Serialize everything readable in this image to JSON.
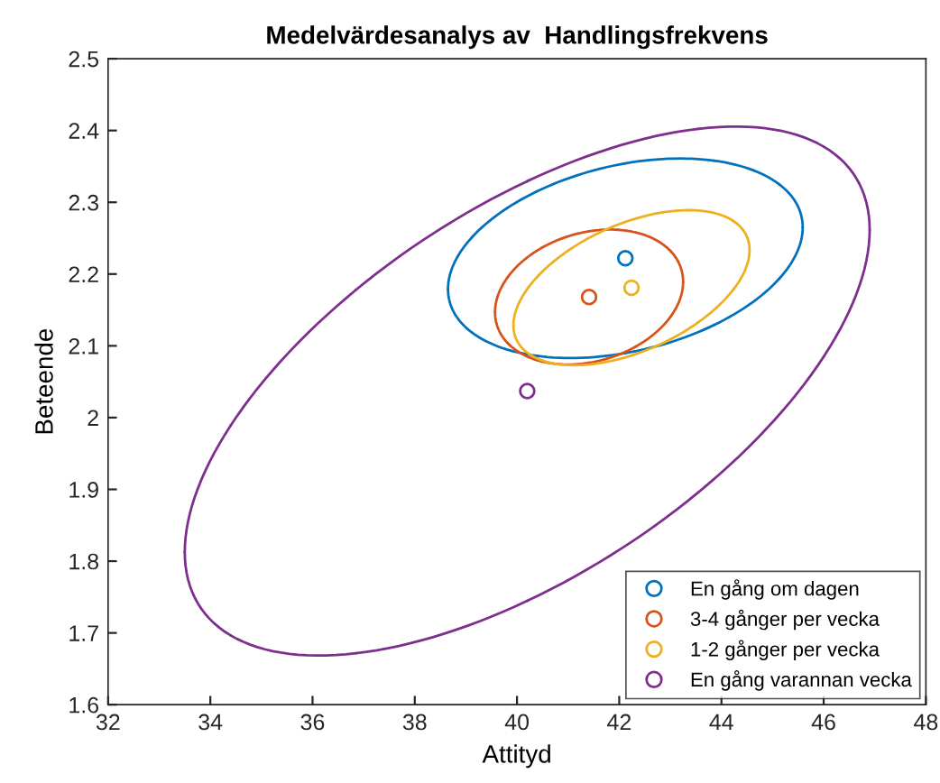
{
  "chart_data": {
    "type": "scatter",
    "title": "Medelvärdesanalys av  Handlingsfrekvens",
    "xlabel": "Attityd",
    "ylabel": "Beteende",
    "xlim": [
      32,
      48
    ],
    "xticks": [
      32,
      34,
      36,
      38,
      40,
      42,
      44,
      46,
      48
    ],
    "ylim": [
      1.6,
      2.5
    ],
    "yticks": [
      1.6,
      1.7,
      1.8,
      1.9,
      2,
      2.1,
      2.2,
      2.3,
      2.4,
      2.5
    ],
    "grid": false,
    "legend": "bottom right",
    "marker": "circle",
    "series": [
      {
        "name": "En gång om dagen",
        "color": "#0072bd",
        "x": [
          42.12
        ],
        "values": [
          2.222
        ]
      },
      {
        "name": "3-4 gånger per vecka",
        "color": "#d95319",
        "x": [
          41.41
        ],
        "values": [
          2.168
        ]
      },
      {
        "name": "1-2 gånger per vecka",
        "color": "#edb120",
        "x": [
          42.24
        ],
        "values": [
          2.181
        ]
      },
      {
        "name": "En gång varannan vecka",
        "color": "#7e2f8e",
        "x": [
          40.2
        ],
        "values": [
          2.037
        ]
      }
    ]
  }
}
